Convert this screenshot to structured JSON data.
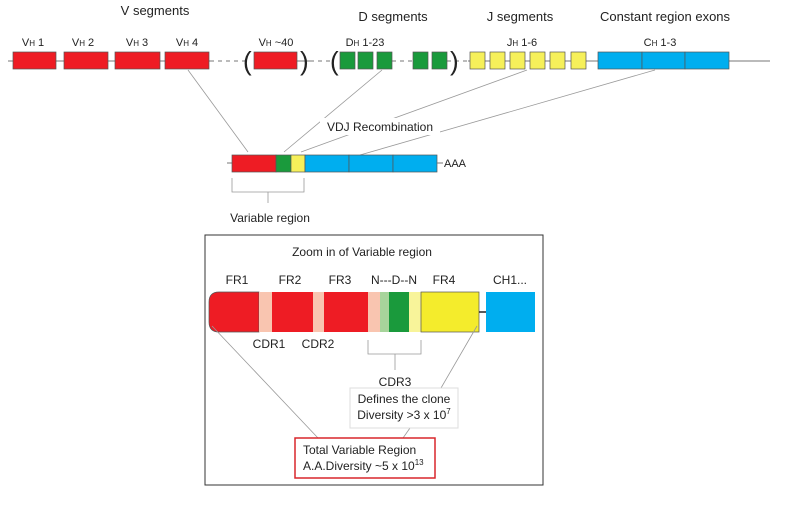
{
  "headings": {
    "v": "V segments",
    "d": "D segments",
    "j": "J segments",
    "c": "Constant region exons"
  },
  "segment_labels": {
    "v1": {
      "main": "V",
      "sub": "H",
      "rest": " 1"
    },
    "v2": {
      "main": "V",
      "sub": "H",
      "rest": " 2"
    },
    "v3": {
      "main": "V",
      "sub": "H",
      "rest": " 3"
    },
    "v4": {
      "main": "V",
      "sub": "H",
      "rest": " 4"
    },
    "v40": {
      "main": "V",
      "sub": "H",
      "rest": " ~40"
    },
    "d": {
      "main": "D",
      "sub": "H",
      "rest": " 1-23"
    },
    "j": {
      "main": "J",
      "sub": "H",
      "rest": " 1-6"
    },
    "c": {
      "main": "C",
      "sub": "H",
      "rest": " 1-3"
    }
  },
  "parens": {
    "open": "(",
    "close": ")"
  },
  "recombination_label": "VDJ Recombination",
  "poly_a": "AAA",
  "variable_region_label": "Variable region",
  "zoom": {
    "title": "Zoom in of Variable region",
    "labels": {
      "fr1": "FR1",
      "fr2": "FR2",
      "fr3": "FR3",
      "ndn": "N---D--N",
      "fr4": "FR4",
      "ch1": "CH1...",
      "cdr1": "CDR1",
      "cdr2": "CDR2",
      "cdr3": "CDR3"
    },
    "clone_box": {
      "line1": "Defines the clone",
      "line2": "Diversity >3 x 10",
      "exp": "7"
    },
    "total_box": {
      "line1": "Total Variable Region",
      "line2": "A.A.Diversity ~5 x 10",
      "exp": "13"
    }
  },
  "colors": {
    "v": "#ee1c24",
    "d": "#1a9a3c",
    "j": "#f6f05a",
    "c": "#00aeef",
    "cdr": "#f9c5b0",
    "n_green": "#a7d49b",
    "n_yellow": "#f8f49a",
    "fr4": "#f4ec2c",
    "highlight_border": "#d9262c"
  }
}
